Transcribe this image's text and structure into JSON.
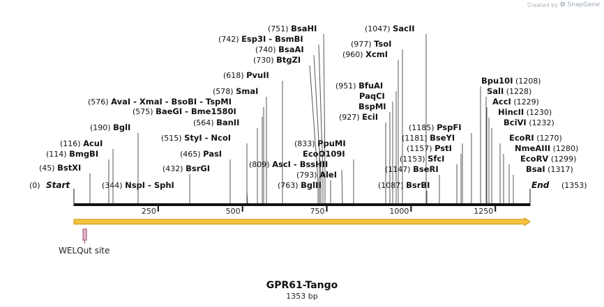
{
  "credit": {
    "prefix": "Created by",
    "brand": "SnapGene"
  },
  "map": {
    "name": "GPR61-Tango",
    "length_text": "1353 bp",
    "length": 1353,
    "start_label": "Start",
    "end_label": "End",
    "start_pos": "(0)",
    "end_pos": "(1353)",
    "ticks": [
      250,
      500,
      750,
      1000,
      1250
    ],
    "colors": {
      "backbone": "#111111",
      "arrow_fill": "#f3c23a",
      "arrow_stroke": "#c8941b",
      "feature_fill": "#e6b3c8",
      "feature_stroke": "#8a4f6a"
    }
  },
  "sites": [
    {
      "pos": "(45)",
      "names": [
        "BstXI"
      ]
    },
    {
      "pos": "(114)",
      "names": [
        "BmgBI"
      ]
    },
    {
      "pos": "(116)",
      "names": [
        "AcuI"
      ]
    },
    {
      "pos": "(190)",
      "names": [
        "BglI"
      ]
    },
    {
      "pos": "(344)",
      "names": [
        "NspI",
        "SphI"
      ]
    },
    {
      "pos": "(432)",
      "names": [
        "BsrGI"
      ]
    },
    {
      "pos": "(465)",
      "names": [
        "PasI"
      ]
    },
    {
      "pos": "(515)",
      "names": [
        "StyI",
        "NcoI"
      ]
    },
    {
      "pos": "(564)",
      "names": [
        "BanII"
      ]
    },
    {
      "pos": "(575)",
      "names": [
        "BaeGI",
        "Bme1580I"
      ]
    },
    {
      "pos": "(576)",
      "names": [
        "AvaI",
        "XmaI",
        "BsoBI",
        "TspMI"
      ]
    },
    {
      "pos": "(578)",
      "names": [
        "SmaI"
      ]
    },
    {
      "pos": "(618)",
      "names": [
        "PvuII"
      ]
    },
    {
      "pos": "(730)",
      "names": [
        "BtgZI"
      ]
    },
    {
      "pos": "(740)",
      "names": [
        "BsaAI"
      ]
    },
    {
      "pos": "(742)",
      "names": [
        "Esp3I",
        "BsmBI"
      ]
    },
    {
      "pos": "(751)",
      "names": [
        "BsaHI"
      ]
    },
    {
      "pos": "(763)",
      "names": [
        "BglII"
      ]
    },
    {
      "pos": "(793)",
      "names": [
        "AleI"
      ]
    },
    {
      "pos": "(809)",
      "names": [
        "AscI",
        "BssHII"
      ]
    },
    {
      "pos": "",
      "names": [
        "EcoO109I"
      ]
    },
    {
      "pos": "(833)",
      "names": [
        "PpuMI"
      ]
    },
    {
      "pos": "(927)",
      "names": [
        "EciI"
      ]
    },
    {
      "pos": "",
      "names": [
        "BspMI"
      ]
    },
    {
      "pos": "",
      "names": [
        "PaqCI"
      ]
    },
    {
      "pos": "(951)",
      "names": [
        "BfuAI"
      ]
    },
    {
      "pos": "(960)",
      "names": [
        "XcmI"
      ]
    },
    {
      "pos": "(977)",
      "names": [
        "TsoI"
      ]
    },
    {
      "pos": "(1047)",
      "names": [
        "SacII"
      ]
    },
    {
      "pos": "(1087)",
      "names": [
        "BsrBI"
      ]
    },
    {
      "pos": "(1147)",
      "names": [
        "BseRI"
      ]
    },
    {
      "pos": "(1153)",
      "names": [
        "SfcI"
      ]
    },
    {
      "pos": "(1157)",
      "names": [
        "PstI"
      ]
    },
    {
      "pos": "(1181)",
      "names": [
        "BseYI"
      ]
    },
    {
      "pos": "(1185)",
      "names": [
        "PspFI"
      ]
    },
    {
      "pos": "(1208)",
      "names": [
        "Bpu10I"
      ]
    },
    {
      "pos": "(1228)",
      "names": [
        "SalI"
      ]
    },
    {
      "pos": "(1229)",
      "names": [
        "AccI"
      ]
    },
    {
      "pos": "(1230)",
      "names": [
        "HincII"
      ]
    },
    {
      "pos": "(1232)",
      "names": [
        "BciVI"
      ]
    },
    {
      "pos": "(1270)",
      "names": [
        "EcoRI"
      ]
    },
    {
      "pos": "(1280)",
      "names": [
        "NmeAIII"
      ]
    },
    {
      "pos": "(1299)",
      "names": [
        "EcoRV"
      ]
    },
    {
      "pos": "(1317)",
      "names": [
        "BsaI"
      ]
    }
  ],
  "features": [
    {
      "label": "WELQut site"
    }
  ]
}
